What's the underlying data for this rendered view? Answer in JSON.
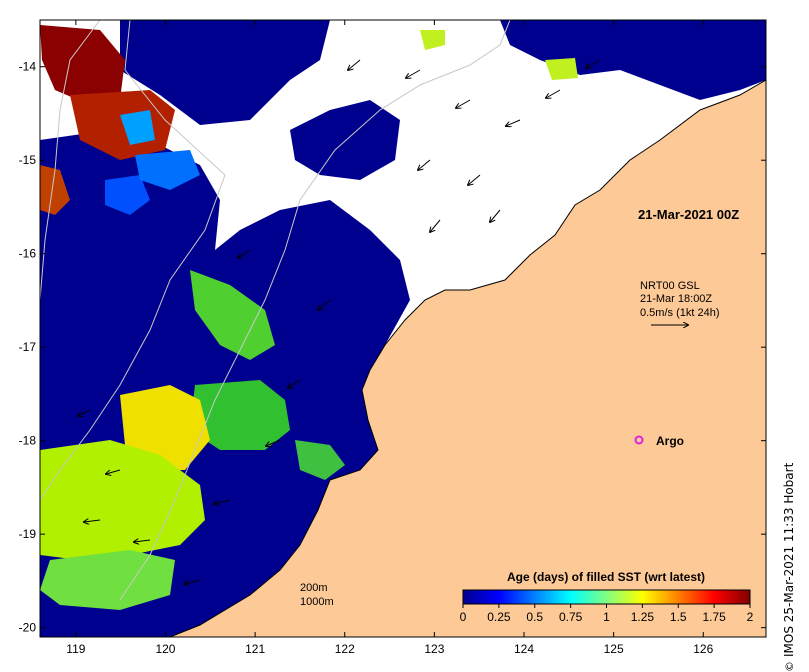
{
  "map": {
    "frame_lon_range": [
      118.6,
      126.7
    ],
    "frame_lat_range": [
      -20.1,
      -13.5
    ],
    "y_ticks": [
      {
        "lat": -14,
        "label": "-14"
      },
      {
        "lat": -15,
        "label": "-15"
      },
      {
        "lat": -16,
        "label": "-16"
      },
      {
        "lat": -17,
        "label": "-17"
      },
      {
        "lat": -18,
        "label": "-18"
      },
      {
        "lat": -19,
        "label": "-19"
      },
      {
        "lat": -20,
        "label": "-20"
      }
    ],
    "x_ticks": [
      {
        "lon": 119,
        "label": "119"
      },
      {
        "lon": 120,
        "label": "120"
      },
      {
        "lon": 121,
        "label": "121"
      },
      {
        "lon": 122,
        "label": "122"
      },
      {
        "lon": 123,
        "label": "123"
      },
      {
        "lon": 124,
        "label": "124"
      },
      {
        "lon": 125,
        "label": "125"
      },
      {
        "lon": 126,
        "label": "126"
      }
    ],
    "colors": {
      "land": "#fdc997",
      "no_data": "#ffffff",
      "frame": "#000000",
      "argo_marker": "#e020e0",
      "isobath": "#c8c8c8"
    }
  },
  "annotations": {
    "timestamp": "21-Mar-2021 00Z",
    "current_source": "NRT00 GSL",
    "current_time": "21-Mar 18:00Z",
    "current_scale": "0.5m/s (1kt 24h)",
    "argo_label": "Argo",
    "isobath_200": "200m",
    "isobath_1000": "1000m"
  },
  "colorbar": {
    "title": "Age (days) of filled SST (wrt latest)",
    "range": [
      0,
      2
    ],
    "ticks": [
      "0",
      "0.25",
      "0.5",
      "0.75",
      "1",
      "1.25",
      "1.5",
      "1.75",
      "2"
    ],
    "colors": [
      "#00008f",
      "#0000ff",
      "#0080ff",
      "#00ffff",
      "#80ff80",
      "#ffff00",
      "#ff8000",
      "#ff0000",
      "#800000"
    ]
  },
  "credit": {
    "copyright_symbol": "©",
    "text": "IMOS 25-Mar-2021 11:33 Hobart"
  }
}
